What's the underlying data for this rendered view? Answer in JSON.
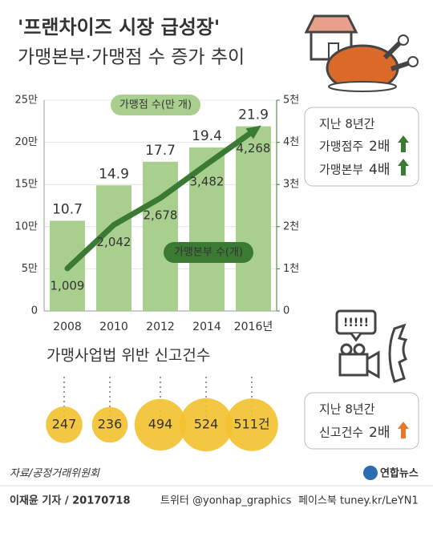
{
  "header": {
    "title": "'프랜차이즈 시장 급성장'",
    "subtitle": "가맹본부·가맹점 수 증가 추이"
  },
  "chart_data": [
    {
      "type": "bar-line",
      "categories": [
        "2008",
        "2010",
        "2012",
        "2014",
        "2016년"
      ],
      "series": [
        {
          "name": "가맹점 수(만 개)",
          "color": "#a9cf8f",
          "values": [
            10.7,
            14.9,
            17.7,
            19.4,
            21.9
          ]
        },
        {
          "name": "가맹본부 수(개)",
          "color": "#3b7a33",
          "axis": "y2",
          "values": [
            1009,
            2042,
            2678,
            3482,
            4268
          ],
          "value_labels": [
            "1,009",
            "2,042",
            "2,678",
            "3,482",
            "4,268"
          ]
        }
      ],
      "ylim": [
        0,
        25
      ],
      "yticks": [
        0,
        {
          "value": 5,
          "label": "5만"
        },
        {
          "value": 10,
          "label": "10만"
        },
        {
          "value": 15,
          "label": "15만"
        },
        {
          "value": 20,
          "label": "20만"
        },
        {
          "value": 25,
          "label": "25만"
        }
      ],
      "y2lim": [
        0,
        5000
      ],
      "y2ticks": [
        0,
        {
          "value": 1000,
          "label": "1천"
        },
        {
          "value": 2000,
          "label": "2천"
        },
        {
          "value": 3000,
          "label": "3천"
        },
        {
          "value": 4000,
          "label": "4천"
        },
        {
          "value": 5000,
          "label": "5천"
        }
      ],
      "grid": true
    },
    {
      "type": "bubble",
      "title": "가맹사업법 위반 신고건수",
      "color": "#f2c12e",
      "values": [
        247,
        236,
        494,
        524,
        511
      ],
      "value_labels": [
        "247",
        "236",
        "494",
        "524",
        "511건"
      ]
    }
  ],
  "notes": [
    {
      "heading": "지난 8년간",
      "items": [
        {
          "label": "가맹점주",
          "value": "2배"
        },
        {
          "label": "가맹본부",
          "value": "4배"
        }
      ]
    },
    {
      "heading": "지난 8년간",
      "items": [
        {
          "label": "신고건수",
          "value": "2배"
        }
      ]
    }
  ],
  "footer": {
    "source": "자료/공정거래위원회",
    "logo": "연합뉴스",
    "credit": "이재윤 기자 / 20170718",
    "twitter": "트위터 @yonhap_graphics",
    "facebook": "페이스북 tuney.kr/LeYN1"
  }
}
